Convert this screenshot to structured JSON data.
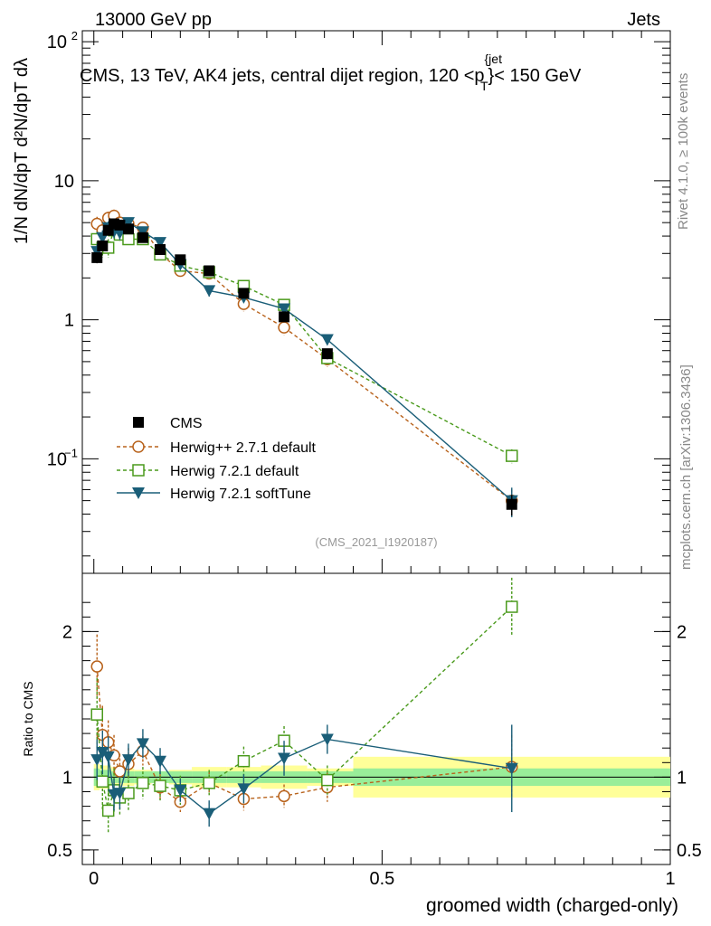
{
  "header": {
    "energy": "13000 GeV pp",
    "category": "Jets",
    "title": "CMS, 13 TeV, AK4 jets, central dijet region, 120 <p",
    "title_sup": "{jet",
    "title_sub": "T",
    "title_end": "}< 150 GeV",
    "analysis_id": "(CMS_2021_I1920187)"
  },
  "side_labels": {
    "rivet": "Rivet 4.1.0, ≥ 100k events",
    "mcplots": "mcplots.cern.ch [arXiv:1306.3436]"
  },
  "axes": {
    "ylabel_top": "1/N dN/dpT d²N/dpT dλ",
    "ylabel_bottom": "Ratio to CMS",
    "xlabel": "groomed width (charged-only)",
    "upper_ticks": [
      {
        "v": 100,
        "label": "10",
        "exp": "2"
      },
      {
        "v": 10,
        "label": "10",
        "exp": ""
      },
      {
        "v": 1,
        "label": "1",
        "exp": ""
      },
      {
        "v": 0.1,
        "label": "10",
        "exp": "−1"
      }
    ],
    "ratio_ticks": [
      {
        "v": 2,
        "label": "2"
      },
      {
        "v": 1,
        "label": "1"
      },
      {
        "v": 0.5,
        "label": "0.5"
      }
    ],
    "x_ticks": [
      {
        "v": 0,
        "label": "0"
      },
      {
        "v": 0.5,
        "label": "0.5"
      },
      {
        "v": 1,
        "label": "1"
      }
    ]
  },
  "chart_data": {
    "type": "line",
    "title": "CMS, 13 TeV, AK4 jets, central dijet region, 120 < pT(jet) < 150 GeV",
    "xlabel": "groomed width (charged-only)",
    "ylabel": "1/N dN/dpT d²N/dpT dλ",
    "xlim": [
      -0.02,
      1.0
    ],
    "ylim": [
      0.015,
      120
    ],
    "yscale": "log",
    "ratio_ylim": [
      0.4,
      2.4
    ],
    "x": [
      0.0055,
      0.015,
      0.025,
      0.035,
      0.045,
      0.06,
      0.085,
      0.115,
      0.15,
      0.2,
      0.26,
      0.33,
      0.405,
      0.725
    ],
    "bin_edges": [
      0.0,
      0.01,
      0.02,
      0.03,
      0.04,
      0.05,
      0.07,
      0.1,
      0.13,
      0.17,
      0.23,
      0.29,
      0.37,
      0.45,
      1.0
    ],
    "legend": [
      "CMS",
      "Herwig++ 2.7.1 default",
      "Herwig 7.2.1 default",
      "Herwig 7.2.1 softTune"
    ],
    "legend_position": "middle-left",
    "series": [
      {
        "name": "CMS",
        "color": "#000000",
        "marker": "square-filled",
        "values": [
          2.8,
          3.4,
          4.4,
          4.9,
          4.8,
          4.5,
          3.9,
          3.2,
          2.7,
          2.25,
          1.55,
          1.05,
          0.57,
          0.047
        ],
        "errors": [
          0.25,
          0.25,
          0.3,
          0.3,
          0.3,
          0.25,
          0.2,
          0.2,
          0.15,
          0.12,
          0.1,
          0.08,
          0.05,
          0.008
        ],
        "ratio_stat": [
          0.06,
          0.05,
          0.05,
          0.04,
          0.04,
          0.04,
          0.04,
          0.04,
          0.04,
          0.04,
          0.04,
          0.04,
          0.04,
          0.06
        ],
        "ratio_tot": [
          0.09,
          0.08,
          0.08,
          0.07,
          0.06,
          0.06,
          0.05,
          0.04,
          0.05,
          0.07,
          0.07,
          0.08,
          0.06,
          0.14
        ]
      },
      {
        "name": "Herwig++ 2.7.1 default",
        "color": "#b8621b",
        "marker": "circle-open",
        "dash": "4,3",
        "values": [
          4.9,
          4.4,
          5.4,
          5.6,
          5.0,
          4.9,
          4.6,
          3.0,
          2.25,
          2.15,
          1.3,
          0.88,
          0.52,
          0.05
        ],
        "errors": [
          0.6,
          0.7,
          0.6,
          0.6,
          0.5,
          0.5,
          0.4,
          0.3,
          0.2,
          0.2,
          0.15,
          0.1,
          0.06,
          0.01
        ],
        "ratio": [
          1.76,
          1.29,
          1.24,
          1.15,
          1.04,
          1.09,
          1.18,
          0.93,
          0.83,
          0.96,
          0.85,
          0.87,
          0.93,
          1.07
        ],
        "ratio_err": [
          0.22,
          0.2,
          0.15,
          0.14,
          0.12,
          0.11,
          0.1,
          0.09,
          0.07,
          0.08,
          0.08,
          0.08,
          0.1,
          0.22
        ]
      },
      {
        "name": "Herwig 7.2.1 default",
        "color": "#4a9a1c",
        "marker": "square-open",
        "dash": "4,3",
        "values": [
          3.8,
          3.3,
          3.3,
          4.4,
          4.1,
          3.8,
          3.8,
          2.95,
          2.45,
          2.2,
          1.75,
          1.28,
          0.53,
          0.105
        ],
        "errors": [
          0.5,
          0.5,
          0.5,
          0.5,
          0.4,
          0.4,
          0.35,
          0.3,
          0.25,
          0.2,
          0.15,
          0.12,
          0.05,
          0.012
        ],
        "ratio": [
          1.43,
          0.97,
          0.77,
          0.91,
          0.86,
          0.89,
          0.96,
          0.94,
          0.91,
          0.96,
          1.11,
          1.25,
          0.98,
          2.17
        ],
        "ratio_err": [
          0.25,
          0.2,
          0.15,
          0.15,
          0.12,
          0.12,
          0.11,
          0.1,
          0.1,
          0.09,
          0.1,
          0.1,
          0.1,
          0.2
        ]
      },
      {
        "name": "Herwig 7.2.1 softTune",
        "color": "#1a5e78",
        "marker": "triangle-down-filled",
        "dash": "",
        "values": [
          3.1,
          3.9,
          4.6,
          4.3,
          4.2,
          5.0,
          4.3,
          3.6,
          2.5,
          1.62,
          1.45,
          1.2,
          0.72,
          0.05
        ],
        "errors": [
          0.4,
          0.5,
          0.5,
          0.45,
          0.45,
          0.4,
          0.35,
          0.3,
          0.2,
          0.15,
          0.12,
          0.1,
          0.06,
          0.012
        ],
        "ratio": [
          1.12,
          1.17,
          1.14,
          0.88,
          0.89,
          1.12,
          1.23,
          1.11,
          0.91,
          0.75,
          0.92,
          1.13,
          1.26,
          1.06
        ],
        "ratio_err": [
          0.14,
          0.15,
          0.14,
          0.11,
          0.11,
          0.11,
          0.1,
          0.09,
          0.08,
          0.09,
          0.1,
          0.12,
          0.1,
          0.3
        ]
      }
    ]
  }
}
